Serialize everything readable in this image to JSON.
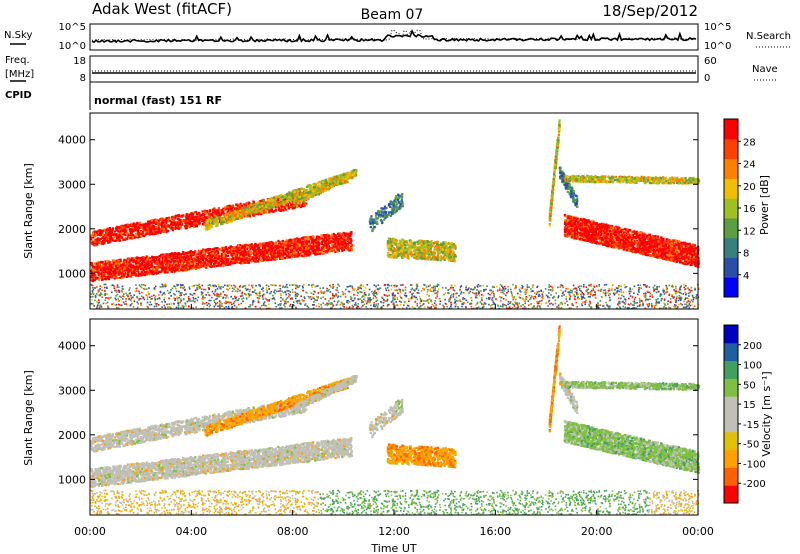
{
  "header": {
    "station": "Adak West (fitACF)",
    "beam": "Beam 07",
    "date": "18/Sep/2012"
  },
  "chart_data": [
    {
      "type": "line",
      "panel": "noise",
      "left_label": "N.Sky",
      "right_label": "N.Search",
      "left_ticks": [
        "10^5",
        "10^0"
      ],
      "right_ticks": [
        "10^5",
        "10^0"
      ]
    },
    {
      "type": "line",
      "panel": "frequency",
      "left_label": "Freq.",
      "left_unit": "[MHz]",
      "left_ticks": [
        "18",
        "8"
      ],
      "right_label": "Nave",
      "right_ticks": [
        "60",
        "0"
      ]
    },
    {
      "type": "table",
      "panel": "cpid",
      "label": "CPID",
      "mode": "normal (fast) 151 RF"
    },
    {
      "type": "heatmap",
      "panel": "power",
      "ylabel": "Slant Range [km]",
      "yticks": [
        1000,
        2000,
        3000,
        4000
      ],
      "ylim": [
        200,
        4600
      ],
      "colorbar_label": "Power [dB]",
      "colorbar_ticks": [
        "4",
        "8",
        "12",
        "16",
        "20",
        "24",
        "28"
      ]
    },
    {
      "type": "heatmap",
      "panel": "velocity",
      "ylabel": "Slant Range [km]",
      "yticks": [
        1000,
        2000,
        3000,
        4000
      ],
      "ylim": [
        200,
        4600
      ],
      "colorbar_label": "Velocity [m s⁻¹]",
      "colorbar_ticks": [
        "-200",
        "-100",
        "-50",
        "-15",
        "15",
        "50",
        "100",
        "200"
      ]
    }
  ],
  "xaxis": {
    "label": "Time UT",
    "ticks": [
      "00:00",
      "04:00",
      "08:00",
      "12:00",
      "16:00",
      "20:00",
      "00:00"
    ]
  },
  "colors": {
    "power_scale": [
      "#0000ff",
      "#2b4fa8",
      "#3a7f7f",
      "#5aa040",
      "#a0c020",
      "#f0c000",
      "#ff8000",
      "#ff4000",
      "#ff0000"
    ],
    "velocity_scale": [
      "#ff0000",
      "#ff6000",
      "#ffa000",
      "#e0c000",
      "#c0c0b8",
      "#c0c0b8",
      "#80c040",
      "#40a060",
      "#2060a0",
      "#0000c0"
    ]
  }
}
